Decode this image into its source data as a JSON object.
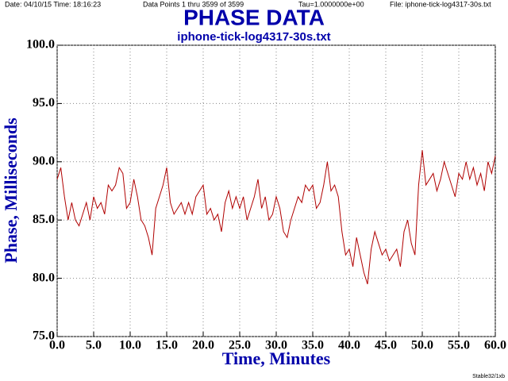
{
  "chart_data": {
    "type": "line",
    "title": "PHASE DATA",
    "subtitle": "iphone-tick-log4317-30s.txt",
    "header": {
      "date": "Date: 04/10/15   Time: 18:16:23",
      "points": "Data Points 1 thru 3599 of 3599",
      "tau": "Tau=1.0000000e+00",
      "file": "File: iphone-tick-log4317-30s.txt"
    },
    "footer": "Stable32/1xb",
    "x_label": "Time,  Minutes",
    "y_label": "Phase,  Milliseconds",
    "xlim": [
      0,
      60
    ],
    "ylim": [
      75,
      100
    ],
    "xticks": [
      {
        "value": 0,
        "label": "0.0"
      },
      {
        "value": 5,
        "label": "5.0"
      },
      {
        "value": 10,
        "label": "10.0"
      },
      {
        "value": 15,
        "label": "15.0"
      },
      {
        "value": 20,
        "label": "20.0"
      },
      {
        "value": 25,
        "label": "25.0"
      },
      {
        "value": 30,
        "label": "30.0"
      },
      {
        "value": 35,
        "label": "35.0"
      },
      {
        "value": 40,
        "label": "40.0"
      },
      {
        "value": 45,
        "label": "45.0"
      },
      {
        "value": 50,
        "label": "50.0"
      },
      {
        "value": 55,
        "label": "55.0"
      },
      {
        "value": 60,
        "label": "60.0"
      }
    ],
    "yticks": [
      {
        "value": 75,
        "label": "75.0"
      },
      {
        "value": 80,
        "label": "80.0"
      },
      {
        "value": 85,
        "label": "85.0"
      },
      {
        "value": 90,
        "label": "90.0"
      },
      {
        "value": 95,
        "label": "95.0"
      },
      {
        "value": 100,
        "label": "100.0"
      }
    ],
    "grid": true,
    "series": [
      {
        "color": "#b00000",
        "x": [
          0,
          0.5,
          1,
          1.5,
          2,
          2.5,
          3,
          3.5,
          4,
          4.5,
          5,
          5.5,
          6,
          6.5,
          7,
          7.5,
          8,
          8.5,
          9,
          9.5,
          10,
          10.5,
          11,
          11.5,
          12,
          12.5,
          13,
          13.5,
          14,
          14.5,
          15,
          15.5,
          16,
          16.5,
          17,
          17.5,
          18,
          18.5,
          19,
          19.5,
          20,
          20.5,
          21,
          21.5,
          22,
          22.5,
          23,
          23.5,
          24,
          24.5,
          25,
          25.5,
          26,
          26.5,
          27,
          27.5,
          28,
          28.5,
          29,
          29.5,
          30,
          30.5,
          31,
          31.5,
          32,
          32.5,
          33,
          33.5,
          34,
          34.5,
          35,
          35.5,
          36,
          36.5,
          37,
          37.5,
          38,
          38.5,
          39,
          39.5,
          40,
          40.5,
          41,
          41.5,
          42,
          42.5,
          43,
          43.5,
          44,
          44.5,
          45,
          45.5,
          46,
          46.5,
          47,
          47.5,
          48,
          48.5,
          49,
          49.5,
          50,
          50.5,
          51,
          51.5,
          52,
          52.5,
          53,
          53.5,
          54,
          54.5,
          55,
          55.5,
          56,
          56.5,
          57,
          57.5,
          58,
          58.5,
          59,
          59.5,
          60
        ],
        "values": [
          88.5,
          89.5,
          87,
          85,
          86.5,
          85,
          84.5,
          85.5,
          86.5,
          85,
          87,
          86,
          86.5,
          85.5,
          88,
          87.5,
          88,
          89.5,
          89,
          86,
          86.5,
          88.5,
          87,
          85,
          84.5,
          83.5,
          82,
          86,
          87,
          88,
          89.5,
          86.5,
          85.5,
          86,
          86.5,
          85.5,
          86.5,
          85.5,
          87,
          87.5,
          88,
          85.5,
          86,
          85,
          85.5,
          84,
          86.5,
          87.5,
          86,
          87,
          86,
          87,
          85,
          86,
          87,
          88.5,
          86,
          87,
          85,
          85.5,
          87,
          86,
          84,
          83.5,
          85,
          86,
          87,
          86.5,
          88,
          87.5,
          88,
          86,
          86.5,
          88,
          90,
          87.5,
          88,
          87,
          84,
          82,
          82.5,
          81,
          83.5,
          82,
          80.5,
          79.5,
          82.5,
          84,
          83,
          82,
          82.5,
          81.5,
          82,
          82.5,
          81,
          84,
          85,
          83,
          82,
          88,
          91,
          88,
          88.5,
          89,
          87.5,
          88.5,
          90,
          89,
          88,
          87,
          89,
          88.5,
          90,
          88.5,
          89.5,
          88,
          89,
          87.5,
          90,
          89,
          90.5
        ]
      }
    ]
  }
}
